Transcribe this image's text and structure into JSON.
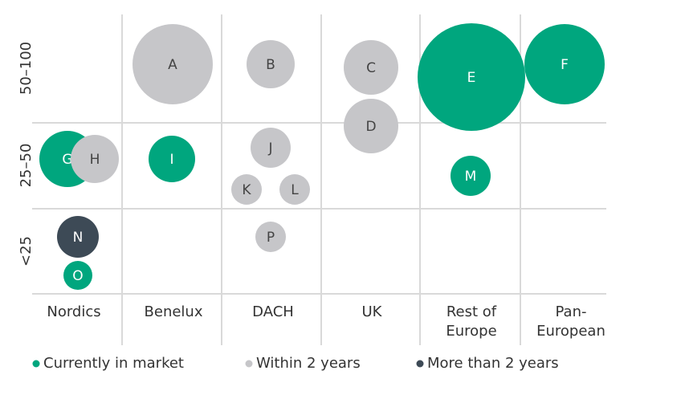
{
  "chart_data": {
    "type": "bubble",
    "x_categories": [
      "Nordics",
      "Benelux",
      "DACH",
      "UK",
      "Rest of Europe",
      "Pan-European"
    ],
    "y_categories": [
      "50–100",
      "25–50",
      "<25"
    ],
    "series": [
      {
        "name": "Currently in market",
        "color": "#00a67e",
        "points": [
          {
            "label": "E",
            "x": "Rest of Europe",
            "y": "50–100",
            "size": 134
          },
          {
            "label": "F",
            "x": "Pan-European",
            "y": "50–100",
            "size": 100
          },
          {
            "label": "G",
            "x": "Nordics",
            "y": "25–50",
            "size": 70
          },
          {
            "label": "I",
            "x": "Benelux",
            "y": "25–50",
            "size": 58
          },
          {
            "label": "M",
            "x": "Rest of Europe",
            "y": "25–50",
            "size": 50
          },
          {
            "label": "O",
            "x": "Nordics",
            "y": "<25",
            "size": 36
          }
        ]
      },
      {
        "name": "Within 2 years",
        "color": "#c6c6c9",
        "points": [
          {
            "label": "A",
            "x": "Benelux",
            "y": "50–100",
            "size": 100
          },
          {
            "label": "B",
            "x": "DACH",
            "y": "50–100",
            "size": 60
          },
          {
            "label": "C",
            "x": "UK",
            "y": "50–100",
            "size": 68
          },
          {
            "label": "D",
            "x": "UK",
            "y": "50–100",
            "size": 68
          },
          {
            "label": "H",
            "x": "Nordics",
            "y": "25–50",
            "size": 60
          },
          {
            "label": "J",
            "x": "DACH",
            "y": "25–50",
            "size": 50
          },
          {
            "label": "K",
            "x": "DACH",
            "y": "25–50",
            "size": 38
          },
          {
            "label": "L",
            "x": "DACH",
            "y": "25–50",
            "size": 38
          },
          {
            "label": "P",
            "x": "DACH",
            "y": "<25",
            "size": 38
          }
        ]
      },
      {
        "name": "More than 2 years",
        "color": "#3d4a56",
        "points": [
          {
            "label": "N",
            "x": "Nordics",
            "y": "<25",
            "size": 52
          }
        ]
      }
    ]
  }
}
